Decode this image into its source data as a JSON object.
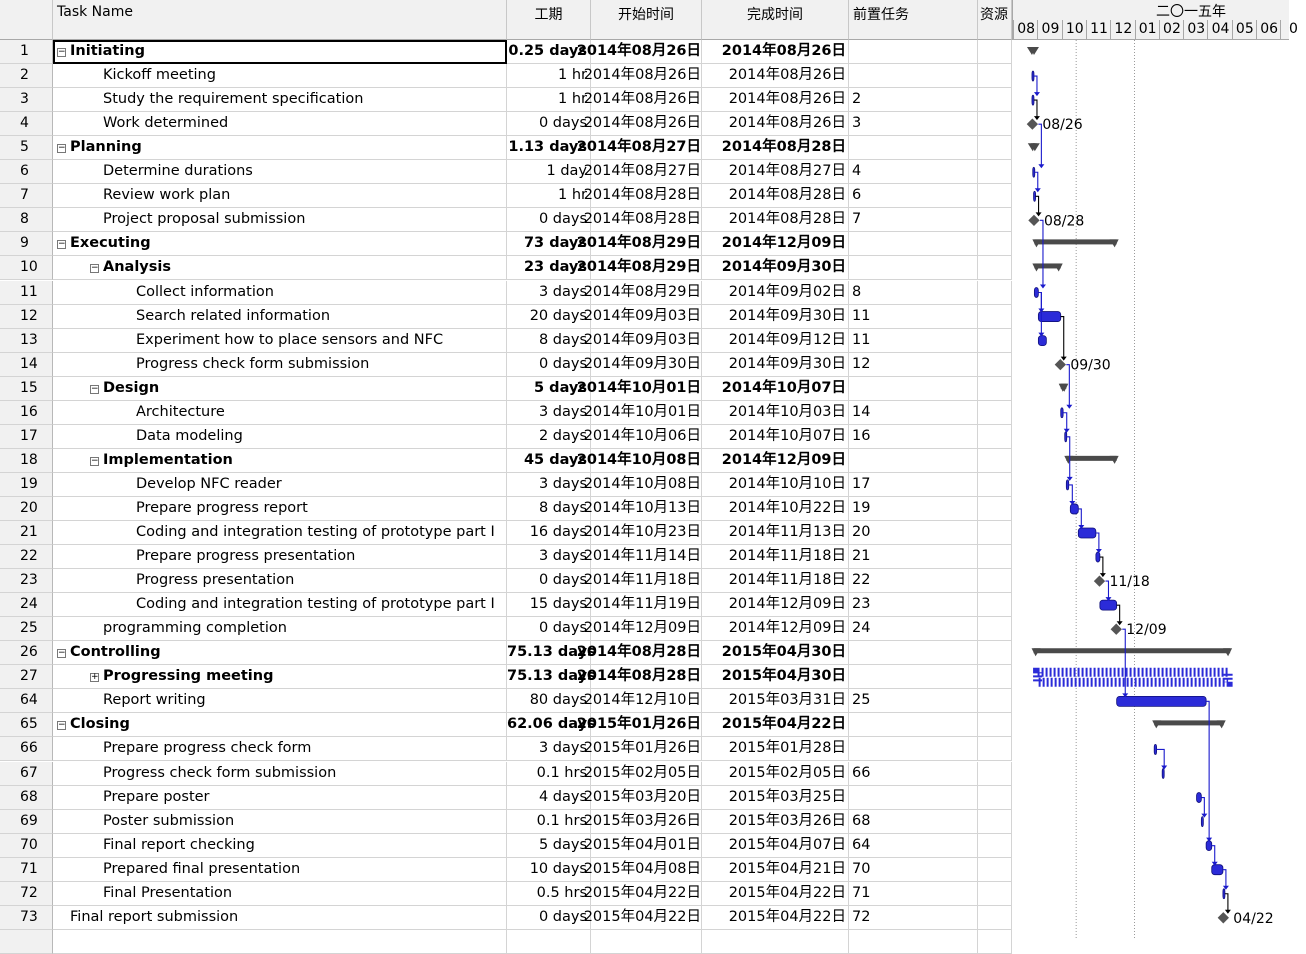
{
  "columns": {
    "id": "",
    "name": "Task Name",
    "duration": "工期",
    "start": "开始时间",
    "finish": "完成时间",
    "predecessors": "前置任务",
    "resources": "资源"
  },
  "timescale": {
    "year_label": "二〇一五年",
    "months": [
      "08",
      "09",
      "10",
      "11",
      "12",
      "01",
      "02",
      "03",
      "04",
      "05",
      "06",
      "0"
    ]
  },
  "tasks": [
    {
      "id": "1",
      "name": "Initiating",
      "level": 0,
      "summary": true,
      "toggle": "−",
      "duration": "0.25 days",
      "start": "2014年08月26日",
      "finish": "2014年08月26日",
      "pred": ""
    },
    {
      "id": "2",
      "name": "Kickoff meeting",
      "level": 1,
      "summary": false,
      "toggle": "",
      "duration": "1 hr",
      "start": "2014年08月26日",
      "finish": "2014年08月26日",
      "pred": ""
    },
    {
      "id": "3",
      "name": "Study the requirement specification",
      "level": 1,
      "summary": false,
      "toggle": "",
      "duration": "1 hr",
      "start": "2014年08月26日",
      "finish": "2014年08月26日",
      "pred": "2"
    },
    {
      "id": "4",
      "name": "Work determined",
      "level": 1,
      "summary": false,
      "toggle": "",
      "duration": "0 days",
      "start": "2014年08月26日",
      "finish": "2014年08月26日",
      "pred": "3"
    },
    {
      "id": "5",
      "name": "Planning",
      "level": 0,
      "summary": true,
      "toggle": "−",
      "duration": "1.13 days",
      "start": "2014年08月27日",
      "finish": "2014年08月28日",
      "pred": ""
    },
    {
      "id": "6",
      "name": "Determine durations",
      "level": 1,
      "summary": false,
      "toggle": "",
      "duration": "1 day",
      "start": "2014年08月27日",
      "finish": "2014年08月27日",
      "pred": "4"
    },
    {
      "id": "7",
      "name": "Review work plan",
      "level": 1,
      "summary": false,
      "toggle": "",
      "duration": "1 hr",
      "start": "2014年08月28日",
      "finish": "2014年08月28日",
      "pred": "6"
    },
    {
      "id": "8",
      "name": "Project proposal submission",
      "level": 1,
      "summary": false,
      "toggle": "",
      "duration": "0 days",
      "start": "2014年08月28日",
      "finish": "2014年08月28日",
      "pred": "7"
    },
    {
      "id": "9",
      "name": "Executing",
      "level": 0,
      "summary": true,
      "toggle": "−",
      "duration": "73 days",
      "start": "2014年08月29日",
      "finish": "2014年12月09日",
      "pred": ""
    },
    {
      "id": "10",
      "name": "Analysis",
      "level": 1,
      "summary": true,
      "toggle": "−",
      "duration": "23 days",
      "start": "2014年08月29日",
      "finish": "2014年09月30日",
      "pred": ""
    },
    {
      "id": "11",
      "name": "Collect information",
      "level": 2,
      "summary": false,
      "toggle": "",
      "duration": "3 days",
      "start": "2014年08月29日",
      "finish": "2014年09月02日",
      "pred": "8"
    },
    {
      "id": "12",
      "name": "Search related information",
      "level": 2,
      "summary": false,
      "toggle": "",
      "duration": "20 days",
      "start": "2014年09月03日",
      "finish": "2014年09月30日",
      "pred": "11"
    },
    {
      "id": "13",
      "name": "Experiment how to place sensors and NFC",
      "level": 2,
      "summary": false,
      "toggle": "",
      "duration": "8 days",
      "start": "2014年09月03日",
      "finish": "2014年09月12日",
      "pred": "11"
    },
    {
      "id": "14",
      "name": "Progress check form submission",
      "level": 2,
      "summary": false,
      "toggle": "",
      "duration": "0 days",
      "start": "2014年09月30日",
      "finish": "2014年09月30日",
      "pred": "12"
    },
    {
      "id": "15",
      "name": "Design",
      "level": 1,
      "summary": true,
      "toggle": "−",
      "duration": "5 days",
      "start": "2014年10月01日",
      "finish": "2014年10月07日",
      "pred": ""
    },
    {
      "id": "16",
      "name": "Architecture",
      "level": 2,
      "summary": false,
      "toggle": "",
      "duration": "3 days",
      "start": "2014年10月01日",
      "finish": "2014年10月03日",
      "pred": "14"
    },
    {
      "id": "17",
      "name": "Data modeling",
      "level": 2,
      "summary": false,
      "toggle": "",
      "duration": "2 days",
      "start": "2014年10月06日",
      "finish": "2014年10月07日",
      "pred": "16"
    },
    {
      "id": "18",
      "name": "Implementation",
      "level": 1,
      "summary": true,
      "toggle": "−",
      "duration": "45 days",
      "start": "2014年10月08日",
      "finish": "2014年12月09日",
      "pred": ""
    },
    {
      "id": "19",
      "name": "Develop NFC reader",
      "level": 2,
      "summary": false,
      "toggle": "",
      "duration": "3 days",
      "start": "2014年10月08日",
      "finish": "2014年10月10日",
      "pred": "17"
    },
    {
      "id": "20",
      "name": "Prepare progress report",
      "level": 2,
      "summary": false,
      "toggle": "",
      "duration": "8 days",
      "start": "2014年10月13日",
      "finish": "2014年10月22日",
      "pred": "19"
    },
    {
      "id": "21",
      "name": "Coding and integration testing of prototype part I",
      "level": 2,
      "summary": false,
      "toggle": "",
      "duration": "16 days",
      "start": "2014年10月23日",
      "finish": "2014年11月13日",
      "pred": "20"
    },
    {
      "id": "22",
      "name": "Prepare progress presentation",
      "level": 2,
      "summary": false,
      "toggle": "",
      "duration": "3 days",
      "start": "2014年11月14日",
      "finish": "2014年11月18日",
      "pred": "21"
    },
    {
      "id": "23",
      "name": "Progress presentation",
      "level": 2,
      "summary": false,
      "toggle": "",
      "duration": "0 days",
      "start": "2014年11月18日",
      "finish": "2014年11月18日",
      "pred": "22"
    },
    {
      "id": "24",
      "name": "Coding and integration testing of prototype part I",
      "level": 2,
      "summary": false,
      "toggle": "",
      "duration": "15 days",
      "start": "2014年11月19日",
      "finish": "2014年12月09日",
      "pred": "23"
    },
    {
      "id": "25",
      "name": "programming completion",
      "level": 1,
      "summary": false,
      "toggle": "",
      "duration": "0 days",
      "start": "2014年12月09日",
      "finish": "2014年12月09日",
      "pred": "24"
    },
    {
      "id": "26",
      "name": "Controlling",
      "level": 0,
      "summary": true,
      "toggle": "−",
      "duration": "75.13 days",
      "start": "2014年08月28日",
      "finish": "2015年04月30日",
      "pred": ""
    },
    {
      "id": "27",
      "name": "Progressing meeting",
      "level": 1,
      "summary": true,
      "toggle": "+",
      "duration": "75.13 days",
      "start": "2014年08月28日",
      "finish": "2015年04月30日",
      "pred": ""
    },
    {
      "id": "64",
      "name": "Report writing",
      "level": 1,
      "summary": false,
      "toggle": "",
      "duration": "80 days",
      "start": "2014年12月10日",
      "finish": "2015年03月31日",
      "pred": "25"
    },
    {
      "id": "65",
      "name": "Closing",
      "level": 0,
      "summary": true,
      "toggle": "−",
      "duration": "62.06 days",
      "start": "2015年01月26日",
      "finish": "2015年04月22日",
      "pred": ""
    },
    {
      "id": "66",
      "name": "Prepare progress check form",
      "level": 1,
      "summary": false,
      "toggle": "",
      "duration": "3 days",
      "start": "2015年01月26日",
      "finish": "2015年01月28日",
      "pred": ""
    },
    {
      "id": "67",
      "name": "Progress check form submission",
      "level": 1,
      "summary": false,
      "toggle": "",
      "duration": "0.1 hrs",
      "start": "2015年02月05日",
      "finish": "2015年02月05日",
      "pred": "66"
    },
    {
      "id": "68",
      "name": "Prepare poster",
      "level": 1,
      "summary": false,
      "toggle": "",
      "duration": "4 days",
      "start": "2015年03月20日",
      "finish": "2015年03月25日",
      "pred": ""
    },
    {
      "id": "69",
      "name": "Poster submission",
      "level": 1,
      "summary": false,
      "toggle": "",
      "duration": "0.1 hrs",
      "start": "2015年03月26日",
      "finish": "2015年03月26日",
      "pred": "68"
    },
    {
      "id": "70",
      "name": "Final report checking",
      "level": 1,
      "summary": false,
      "toggle": "",
      "duration": "5 days",
      "start": "2015年04月01日",
      "finish": "2015年04月07日",
      "pred": "64"
    },
    {
      "id": "71",
      "name": "Prepared final presentation",
      "level": 1,
      "summary": false,
      "toggle": "",
      "duration": "10 days",
      "start": "2015年04月08日",
      "finish": "2015年04月21日",
      "pred": "70"
    },
    {
      "id": "72",
      "name": "Final Presentation",
      "level": 1,
      "summary": false,
      "toggle": "",
      "duration": "0.5 hrs",
      "start": "2015年04月22日",
      "finish": "2015年04月22日",
      "pred": "71"
    },
    {
      "id": "73",
      "name": "Final report submission",
      "level": 0,
      "summary": false,
      "toggle": "",
      "duration": "0 days",
      "start": "2015年04月22日",
      "finish": "2015年04月22日",
      "pred": "72"
    }
  ],
  "gantt": {
    "colors": {
      "task": "#2b2bd8",
      "summary": "#4a4a4a",
      "milestone": "#555555",
      "link_blue": "#1a1acc",
      "link_black": "#000000"
    },
    "milestone_labels": [
      {
        "row": "4",
        "text": "08/26"
      },
      {
        "row": "8",
        "text": "08/28"
      },
      {
        "row": "14",
        "text": "09/30"
      },
      {
        "row": "23",
        "text": "11/18"
      },
      {
        "row": "25",
        "text": "12/09"
      },
      {
        "row": "73",
        "text": "04/22"
      }
    ]
  }
}
